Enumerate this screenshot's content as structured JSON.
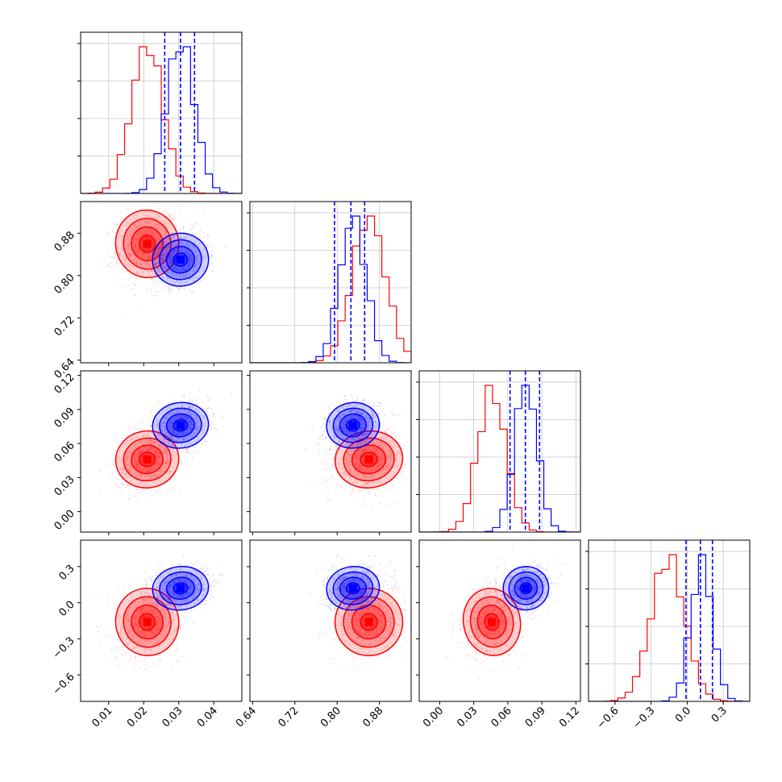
{
  "chart_data": {
    "type": "corner",
    "parameters": [
      {
        "range": [
          0.002,
          0.048
        ],
        "ticks": [
          0.01,
          0.02,
          0.03,
          0.04
        ],
        "tick_labels": [
          "0.01",
          "0.02",
          "0.03",
          "0.04"
        ]
      },
      {
        "range": [
          0.635,
          0.94
        ],
        "ticks": [
          0.64,
          0.72,
          0.8,
          0.88
        ],
        "tick_labels": [
          "0.64",
          "0.72",
          "0.80",
          "0.88"
        ]
      },
      {
        "range": [
          -0.018,
          0.124
        ],
        "ticks": [
          0.0,
          0.03,
          0.06,
          0.09,
          0.12
        ],
        "tick_labels": [
          "0.00",
          "0.03",
          "0.06",
          "0.09",
          "0.12"
        ]
      },
      {
        "range": [
          -0.82,
          0.52
        ],
        "ticks": [
          -0.6,
          -0.3,
          0.0,
          0.3
        ],
        "tick_labels": [
          "−0.6",
          "−0.3",
          "0.0",
          "0.3"
        ]
      }
    ],
    "series": [
      {
        "color": "#ff0000",
        "mean": [
          0.021,
          0.86,
          0.046,
          -0.16
        ],
        "sd": [
          0.0045,
          0.032,
          0.0125,
          0.14
        ],
        "corr": 0.18
      },
      {
        "color": "#0000ff",
        "mean": [
          0.0305,
          0.83,
          0.076,
          0.12
        ],
        "sd": [
          0.004,
          0.025,
          0.01,
          0.09
        ],
        "corr": 0.18
      }
    ],
    "quantile_lines": {
      "color": "#0000ff",
      "style": "dashed",
      "values": [
        [
          0.026,
          0.0305,
          0.0345
        ],
        [
          0.795,
          0.826,
          0.852
        ],
        [
          0.062,
          0.0755,
          0.088
        ],
        [
          -0.01,
          0.11,
          0.21
        ]
      ]
    },
    "grid": true,
    "title": "",
    "legend": "none"
  }
}
